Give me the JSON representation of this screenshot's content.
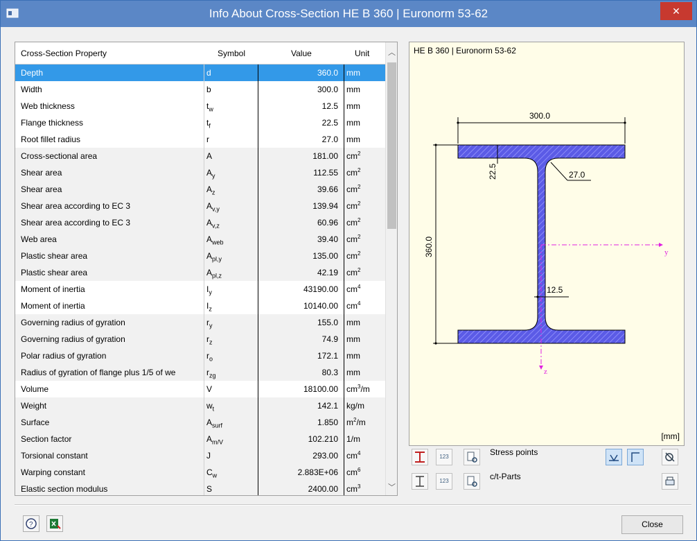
{
  "window": {
    "title": "Info About Cross-Section HE B 360 | Euronorm 53-62",
    "close_glyph": "✕"
  },
  "table": {
    "headers": {
      "property": "Cross-Section Property",
      "symbol": "Symbol",
      "value": "Value",
      "unit": "Unit"
    },
    "rows": [
      {
        "name": "Depth",
        "symbol": "d",
        "value": "360.0",
        "unit": "mm"
      },
      {
        "name": "Width",
        "symbol": "b",
        "value": "300.0",
        "unit": "mm"
      },
      {
        "name": "Web thickness",
        "symbol": "tw",
        "value": "12.5",
        "unit": "mm"
      },
      {
        "name": "Flange thickness",
        "symbol": "tf",
        "value": "22.5",
        "unit": "mm"
      },
      {
        "name": "Root fillet radius",
        "symbol": "r",
        "value": "27.0",
        "unit": "mm"
      },
      {
        "name": "Cross-sectional area",
        "symbol": "A",
        "value": "181.00",
        "unit": "cm2"
      },
      {
        "name": "Shear area",
        "symbol": "Ay",
        "value": "112.55",
        "unit": "cm2"
      },
      {
        "name": "Shear area",
        "symbol": "Az",
        "value": "39.66",
        "unit": "cm2"
      },
      {
        "name": "Shear area according to EC 3",
        "symbol": "Av,y",
        "value": "139.94",
        "unit": "cm2"
      },
      {
        "name": "Shear area according to EC 3",
        "symbol": "Av,z",
        "value": "60.96",
        "unit": "cm2"
      },
      {
        "name": "Web area",
        "symbol": "Aweb",
        "value": "39.40",
        "unit": "cm2"
      },
      {
        "name": "Plastic shear area",
        "symbol": "Apl,y",
        "value": "135.00",
        "unit": "cm2"
      },
      {
        "name": "Plastic shear area",
        "symbol": "Apl,z",
        "value": "42.19",
        "unit": "cm2"
      },
      {
        "name": "Moment of inertia",
        "symbol": "Iy",
        "value": "43190.00",
        "unit": "cm4"
      },
      {
        "name": "Moment of inertia",
        "symbol": "Iz",
        "value": "10140.00",
        "unit": "cm4"
      },
      {
        "name": "Governing radius of gyration",
        "symbol": "ry",
        "value": "155.0",
        "unit": "mm"
      },
      {
        "name": "Governing radius of gyration",
        "symbol": "rz",
        "value": "74.9",
        "unit": "mm"
      },
      {
        "name": "Polar radius of gyration",
        "symbol": "ro",
        "value": "172.1",
        "unit": "mm"
      },
      {
        "name": "Radius of gyration of flange plus 1/5 of we",
        "symbol": "rzg",
        "value": "80.3",
        "unit": "mm"
      },
      {
        "name": "Volume",
        "symbol": "V",
        "value": "18100.00",
        "unit": "cm3/m"
      },
      {
        "name": "Weight",
        "symbol": "wt",
        "value": "142.1",
        "unit": "kg/m"
      },
      {
        "name": "Surface",
        "symbol": "Asurf",
        "value": "1.850",
        "unit": "m2/m"
      },
      {
        "name": "Section factor",
        "symbol": "Am/V",
        "value": "102.210",
        "unit": "1/m"
      },
      {
        "name": "Torsional constant",
        "symbol": "J",
        "value": "293.00",
        "unit": "cm4"
      },
      {
        "name": "Warping constant",
        "symbol": "Cw",
        "value": "2.883E+06",
        "unit": "cm6"
      },
      {
        "name": "Elastic section modulus",
        "symbol": "S",
        "value": "2400.00",
        "unit": "cm3"
      }
    ],
    "selected_row": "Depth"
  },
  "drawing": {
    "title": "HE B 360 | Euronorm 53-62",
    "dim_width": "300.0",
    "dim_depth": "360.0",
    "dim_flange": "22.5",
    "dim_radius": "27.0",
    "dim_web": "12.5",
    "axis_y": "y",
    "axis_z": "z",
    "units": "[mm]",
    "hatch_color": "#4b4bd6",
    "axis_color": "#e020e0"
  },
  "toolbar": {
    "stress_points": "Stress points",
    "ct_parts": "c/t-Parts",
    "num_icon": "123"
  },
  "buttons": {
    "close": "Close"
  }
}
